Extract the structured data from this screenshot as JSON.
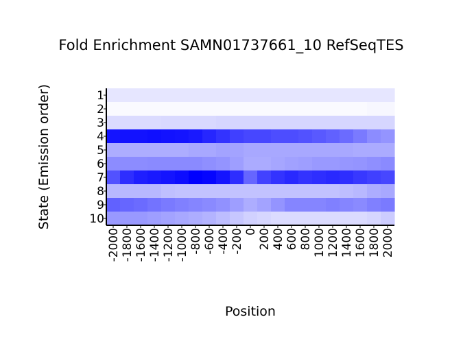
{
  "chart_data": {
    "type": "heatmap",
    "title": "Fold Enrichment SAMN01737661_10 RefSeqTES",
    "xlabel": "Position",
    "ylabel": "State (Emission order)",
    "x": [
      "-2000",
      "-1800",
      "-1600",
      "-1400",
      "-1200",
      "-1000",
      "-800",
      "-600",
      "-400",
      "-200",
      "0",
      "200",
      "400",
      "600",
      "800",
      "1000",
      "1200",
      "1400",
      "1600",
      "1800",
      "2000"
    ],
    "y": [
      "1",
      "2",
      "3",
      "4",
      "5",
      "6",
      "7",
      "8",
      "9",
      "10"
    ],
    "color_scale": {
      "low": "#ffffff",
      "high": "#0000ff"
    },
    "values": [
      [
        0.1,
        0.1,
        0.1,
        0.1,
        0.1,
        0.1,
        0.1,
        0.1,
        0.1,
        0.1,
        0.1,
        0.1,
        0.1,
        0.1,
        0.1,
        0.1,
        0.1,
        0.1,
        0.1,
        0.1,
        0.1
      ],
      [
        0.02,
        0.02,
        0.02,
        0.02,
        0.02,
        0.02,
        0.02,
        0.02,
        0.02,
        0.02,
        0.02,
        0.02,
        0.02,
        0.02,
        0.02,
        0.02,
        0.02,
        0.02,
        0.02,
        0.03,
        0.03
      ],
      [
        0.14,
        0.14,
        0.14,
        0.14,
        0.15,
        0.15,
        0.15,
        0.15,
        0.16,
        0.16,
        0.16,
        0.16,
        0.16,
        0.16,
        0.16,
        0.16,
        0.16,
        0.16,
        0.16,
        0.16,
        0.16
      ],
      [
        0.92,
        0.93,
        0.93,
        0.94,
        0.93,
        0.92,
        0.9,
        0.85,
        0.8,
        0.75,
        0.72,
        0.72,
        0.7,
        0.7,
        0.68,
        0.65,
        0.62,
        0.58,
        0.52,
        0.45,
        0.42
      ],
      [
        0.32,
        0.32,
        0.32,
        0.32,
        0.32,
        0.32,
        0.34,
        0.34,
        0.36,
        0.36,
        0.34,
        0.34,
        0.34,
        0.34,
        0.34,
        0.34,
        0.34,
        0.34,
        0.33,
        0.33,
        0.33
      ],
      [
        0.45,
        0.45,
        0.45,
        0.46,
        0.46,
        0.46,
        0.46,
        0.44,
        0.42,
        0.38,
        0.33,
        0.33,
        0.35,
        0.37,
        0.38,
        0.4,
        0.4,
        0.41,
        0.42,
        0.44,
        0.46
      ],
      [
        0.68,
        0.82,
        0.88,
        0.9,
        0.92,
        0.95,
        1.0,
        0.98,
        0.92,
        0.82,
        0.6,
        0.74,
        0.8,
        0.84,
        0.8,
        0.82,
        0.84,
        0.82,
        0.78,
        0.75,
        0.72
      ],
      [
        0.28,
        0.28,
        0.28,
        0.28,
        0.25,
        0.24,
        0.24,
        0.24,
        0.24,
        0.24,
        0.24,
        0.24,
        0.24,
        0.24,
        0.24,
        0.24,
        0.24,
        0.26,
        0.28,
        0.32,
        0.34
      ],
      [
        0.62,
        0.6,
        0.58,
        0.55,
        0.52,
        0.5,
        0.48,
        0.46,
        0.43,
        0.38,
        0.32,
        0.36,
        0.42,
        0.48,
        0.48,
        0.48,
        0.5,
        0.48,
        0.46,
        0.5,
        0.52
      ],
      [
        0.4,
        0.4,
        0.4,
        0.38,
        0.36,
        0.34,
        0.32,
        0.3,
        0.26,
        0.22,
        0.18,
        0.16,
        0.14,
        0.14,
        0.14,
        0.14,
        0.14,
        0.14,
        0.14,
        0.16,
        0.2
      ]
    ]
  }
}
